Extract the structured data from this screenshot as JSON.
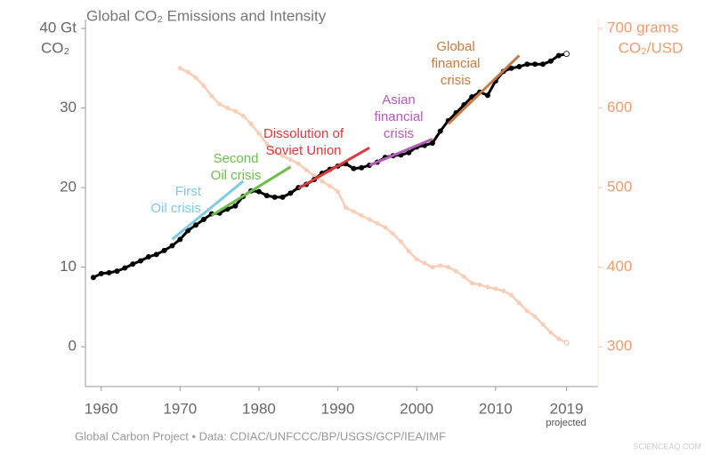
{
  "chart_data": {
    "type": "line",
    "title": "Global CO₂ Emissions and Intensity",
    "y_label": "CO₂",
    "y2_label": "CO₂/USD",
    "x_note": "projected",
    "footer": "Global Carbon Project  •  Data: CDIAC/UNFCCC/BP/USGS/GCP/IEA/IMF",
    "watermark": "SCIENCEAQ.COM",
    "x": [
      1959,
      1960,
      1961,
      1962,
      1963,
      1964,
      1965,
      1966,
      1967,
      1968,
      1969,
      1970,
      1971,
      1972,
      1973,
      1974,
      1975,
      1976,
      1977,
      1978,
      1979,
      1980,
      1981,
      1982,
      1983,
      1984,
      1985,
      1986,
      1987,
      1988,
      1989,
      1990,
      1991,
      1992,
      1993,
      1994,
      1995,
      1996,
      1997,
      1998,
      1999,
      2000,
      2001,
      2002,
      2003,
      2004,
      2005,
      2006,
      2007,
      2008,
      2009,
      2010,
      2011,
      2012,
      2013,
      2014,
      2015,
      2016,
      2017,
      2018,
      2019
    ],
    "series": [
      {
        "color": "#f9cdb6",
        "axis": "y2",
        "values": [
          null,
          null,
          null,
          null,
          null,
          null,
          null,
          null,
          null,
          null,
          null,
          650,
          645,
          638,
          628,
          615,
          605,
          600,
          596,
          590,
          580,
          568,
          555,
          545,
          540,
          535,
          530,
          522,
          515,
          508,
          502,
          495,
          475,
          470,
          465,
          460,
          455,
          450,
          442,
          432,
          420,
          410,
          405,
          400,
          402,
          400,
          395,
          388,
          380,
          378,
          375,
          373,
          370,
          365,
          355,
          345,
          338,
          328,
          318,
          310,
          305
        ]
      },
      {
        "color": "#000000",
        "values": [
          8.7,
          9.2,
          9.3,
          9.5,
          9.9,
          10.4,
          10.8,
          11.3,
          11.6,
          12.1,
          12.7,
          13.5,
          14.6,
          15.3,
          16.0,
          16.7,
          16.8,
          17.3,
          17.7,
          18.9,
          19.6,
          19.5,
          19.0,
          18.8,
          18.8,
          19.3,
          20.0,
          20.4,
          21.0,
          21.8,
          22.3,
          22.7,
          23.0,
          22.4,
          22.5,
          22.8,
          23.2,
          23.8,
          24.0,
          24.1,
          24.4,
          25.1,
          25.3,
          25.6,
          27.1,
          28.4,
          29.4,
          30.4,
          31.4,
          32.0,
          31.6,
          33.4,
          34.6,
          35.0,
          35.2,
          35.5,
          35.5,
          35.5,
          35.9,
          36.6,
          36.8
        ]
      }
    ],
    "trends": [
      {
        "label": [
          "First",
          "Oil crisis"
        ],
        "color": "#7ccbe0",
        "x": [
          1969,
          1978
        ],
        "values": [
          13.5,
          20.8
        ]
      },
      {
        "label": [
          "Second",
          "Oil crisis"
        ],
        "color": "#6cbf4a",
        "x": [
          1974,
          1984
        ],
        "values": [
          16.5,
          22.6
        ]
      },
      {
        "label": [
          "Dissolution of",
          "Soviet Union"
        ],
        "color": "#e0383b",
        "x": [
          1985,
          1994
        ],
        "values": [
          19.9,
          25.0
        ]
      },
      {
        "label": [
          "Asian",
          "financial",
          "crisis"
        ],
        "color": "#b35cb8",
        "x": [
          1994,
          2002
        ],
        "values": [
          22.8,
          26.1
        ]
      },
      {
        "label": [
          "Global",
          "financial",
          "crisis"
        ],
        "color": "#c77b43",
        "x": [
          2004,
          2013
        ],
        "values": [
          28.0,
          36.6
        ]
      }
    ],
    "xlim": [
      1958,
      2023
    ],
    "xticks": [
      1960,
      1970,
      1980,
      1990,
      2000,
      2010,
      2019
    ],
    "ylim": [
      -5,
      40
    ],
    "yticks": [
      0,
      10,
      20,
      30,
      {
        "value": 40,
        "label": "40 Gt"
      }
    ],
    "y2lim": [
      250,
      700
    ],
    "y2ticks": [
      300,
      400,
      500,
      600,
      {
        "value": 700,
        "label": "700 grams"
      }
    ]
  }
}
